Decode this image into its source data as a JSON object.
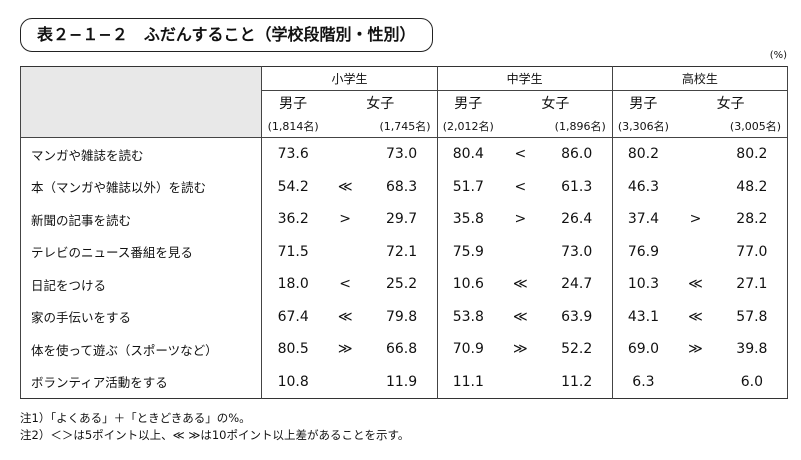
{
  "header": {
    "title": "表２−１−２　ふだんすること（学校段階別・性別）",
    "unit": "(%)"
  },
  "table": {
    "groups": [
      "小学生",
      "中学生",
      "高校生"
    ],
    "sexes": [
      "男子",
      "女子",
      "男子",
      "女子",
      "男子",
      "女子"
    ],
    "counts": [
      "(1,814名)",
      "(1,745名)",
      "(2,012名)",
      "(1,896名)",
      "(3,306名)",
      "(3,005名)"
    ],
    "rows": [
      {
        "label": "マンガや雑誌を読む",
        "cells": [
          [
            "73.6",
            null,
            "73.0"
          ],
          [
            "80.4",
            "<",
            "86.0"
          ],
          [
            "80.2",
            null,
            "80.2"
          ]
        ]
      },
      {
        "label": "本（マンガや雑誌以外）を読む",
        "cells": [
          [
            "54.2",
            "≪",
            "68.3"
          ],
          [
            "51.7",
            "<",
            "61.3"
          ],
          [
            "46.3",
            null,
            "48.2"
          ]
        ]
      },
      {
        "label": "新聞の記事を読む",
        "cells": [
          [
            "36.2",
            ">",
            "29.7"
          ],
          [
            "35.8",
            ">",
            "26.4"
          ],
          [
            "37.4",
            ">",
            "28.2"
          ]
        ]
      },
      {
        "label": "テレビのニュース番組を見る",
        "cells": [
          [
            "71.5",
            null,
            "72.1"
          ],
          [
            "75.9",
            null,
            "73.0"
          ],
          [
            "76.9",
            null,
            "77.0"
          ]
        ]
      },
      {
        "label": "日記をつける",
        "cells": [
          [
            "18.0",
            "<",
            "25.2"
          ],
          [
            "10.6",
            "≪",
            "24.7"
          ],
          [
            "10.3",
            "≪",
            "27.1"
          ]
        ]
      },
      {
        "label": "家の手伝いをする",
        "cells": [
          [
            "67.4",
            "≪",
            "79.8"
          ],
          [
            "53.8",
            "≪",
            "63.9"
          ],
          [
            "43.1",
            "≪",
            "57.8"
          ]
        ]
      },
      {
        "label": "体を使って遊ぶ（スポーツなど）",
        "cells": [
          [
            "80.5",
            "≫",
            "66.8"
          ],
          [
            "70.9",
            "≫",
            "52.2"
          ],
          [
            "69.0",
            "≫",
            "39.8"
          ]
        ]
      },
      {
        "label": "ボランティア活動をする",
        "cells": [
          [
            "10.8",
            null,
            "11.9"
          ],
          [
            "11.1",
            null,
            "11.2"
          ],
          [
            "6.3",
            null,
            "6.0"
          ]
        ]
      }
    ]
  },
  "notes": [
    "注1）「よくある」＋「ときどきある」の%。",
    "注2）＜＞は5ポイント以上、≪ ≫は10ポイント以上差があることを示す。"
  ]
}
